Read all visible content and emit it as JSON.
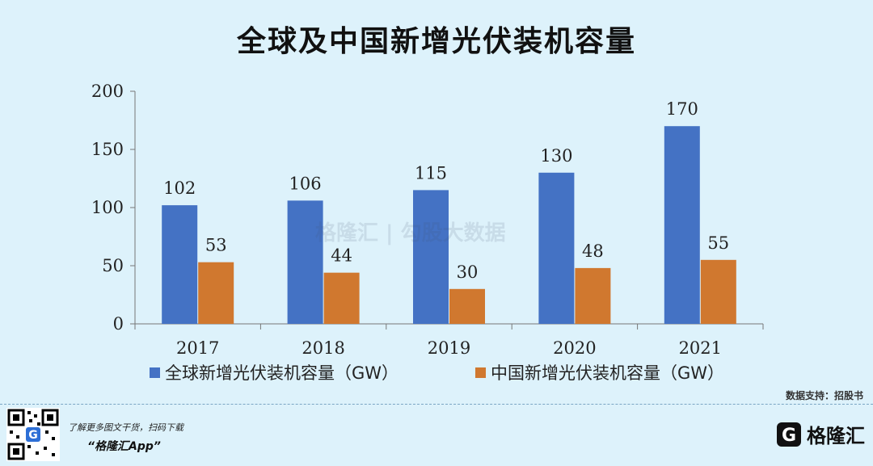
{
  "title": "全球及中国新增光伏装机容量",
  "chart_data": {
    "type": "bar",
    "categories": [
      "2017",
      "2018",
      "2019",
      "2020",
      "2021"
    ],
    "series": [
      {
        "name": "全球新增光伏装机容量（GW）",
        "color": "#4472c4",
        "values": [
          102,
          106,
          115,
          130,
          170
        ]
      },
      {
        "name": "中国新增光伏装机容量（GW）",
        "color": "#d0782f",
        "values": [
          53,
          44,
          30,
          48,
          55
        ]
      }
    ],
    "ylim": [
      0,
      200
    ],
    "yticks": [
      0,
      50,
      100,
      150,
      200
    ],
    "grid": false,
    "legend": "bottom"
  },
  "source": "数据支持：招股书",
  "footer": {
    "caption": "了解更多图文干货，扫码下载",
    "app": "“格隆汇App”",
    "logo_text": "格隆汇",
    "logo_icon": "g-logo-icon",
    "qr_icon": "qr-code-icon"
  },
  "watermark": "格隆汇 | 勾股大数据"
}
